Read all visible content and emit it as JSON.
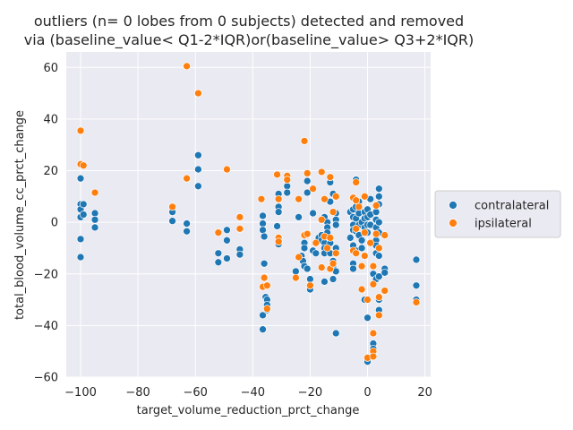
{
  "chart_data": {
    "type": "scatter",
    "title_line1": "outliers (n= 0 lobes from 0 subjects) detected and removed",
    "title_line2": "via (baseline_value< Q1-2*IQR)or(baseline_value> Q3+2*IQR)",
    "xlabel": "target_volume_reduction_prct_change",
    "ylabel": "total_blood_volume_cc_prct_change",
    "xlim": [
      -105,
      22
    ],
    "ylim": [
      -60,
      66
    ],
    "xticks": [
      -100,
      -80,
      -60,
      -40,
      -20,
      0,
      20
    ],
    "yticks": [
      -60,
      -40,
      -20,
      0,
      20,
      40,
      60
    ],
    "xtick_labels": [
      "−100",
      "−80",
      "−60",
      "−40",
      "−20",
      "0",
      "20"
    ],
    "ytick_labels": [
      "−60",
      "−40",
      "−20",
      "0",
      "20",
      "40",
      "60"
    ],
    "grid": true,
    "legend_placement": "center-right outside",
    "series": [
      {
        "name": "contralateral",
        "color": "#1f77b4",
        "points": [
          [
            -100,
            17
          ],
          [
            -100,
            7
          ],
          [
            -100,
            5
          ],
          [
            -100,
            2
          ],
          [
            -100,
            -6.5
          ],
          [
            -100,
            -13.5
          ],
          [
            -99,
            7
          ],
          [
            -99,
            3
          ],
          [
            -95,
            3.5
          ],
          [
            -95,
            1
          ],
          [
            -95,
            -2
          ],
          [
            -68,
            4
          ],
          [
            -68,
            0.5
          ],
          [
            -63,
            -0.5
          ],
          [
            -63,
            -3.5
          ],
          [
            -59,
            26
          ],
          [
            -59,
            20.5
          ],
          [
            -59,
            14
          ],
          [
            -52,
            -12
          ],
          [
            -52,
            -15.5
          ],
          [
            -49,
            -3
          ],
          [
            -49,
            -7
          ],
          [
            -49,
            -14
          ],
          [
            -44.5,
            -10.5
          ],
          [
            -44.5,
            -12.5
          ],
          [
            -36.5,
            2.5
          ],
          [
            -36.5,
            -0.5
          ],
          [
            -36.5,
            -3
          ],
          [
            -36,
            -5.5
          ],
          [
            -36,
            -16
          ],
          [
            -36.5,
            -36
          ],
          [
            -36.5,
            -41.5
          ],
          [
            -35.5,
            -29
          ],
          [
            -35,
            -30
          ],
          [
            -35,
            -32
          ],
          [
            -35,
            -34
          ],
          [
            -31,
            11
          ],
          [
            -31,
            6
          ],
          [
            -31,
            4
          ],
          [
            -31.5,
            -1.5
          ],
          [
            -31,
            -7.5
          ],
          [
            -31,
            -8.5
          ],
          [
            -28,
            14
          ],
          [
            -28,
            11.5
          ],
          [
            -25,
            -19
          ],
          [
            -24,
            2
          ],
          [
            -23,
            -13
          ],
          [
            -22.5,
            -15
          ],
          [
            -22,
            -17
          ],
          [
            -22,
            -8
          ],
          [
            -22,
            -10
          ],
          [
            -21,
            16
          ],
          [
            -21,
            11.5
          ],
          [
            -21,
            -18
          ],
          [
            -20,
            -22
          ],
          [
            -20,
            -26
          ],
          [
            -19,
            3.5
          ],
          [
            -19,
            -11
          ],
          [
            -18,
            -12
          ],
          [
            -17,
            -6
          ],
          [
            -16,
            -5
          ],
          [
            -16,
            -7
          ],
          [
            -15,
            -8
          ],
          [
            -15,
            -10
          ],
          [
            -15,
            -12
          ],
          [
            -15,
            -23
          ],
          [
            -15,
            2
          ],
          [
            -14,
            0
          ],
          [
            -14,
            -2
          ],
          [
            -14,
            -4
          ],
          [
            -13,
            15.5
          ],
          [
            -13,
            8
          ],
          [
            -13,
            -8
          ],
          [
            -13,
            -12
          ],
          [
            -12,
            11
          ],
          [
            -12,
            -15
          ],
          [
            -12,
            -17
          ],
          [
            -12,
            -22
          ],
          [
            -11,
            3.5
          ],
          [
            -11,
            1
          ],
          [
            -11,
            -1
          ],
          [
            -11,
            -10
          ],
          [
            -11,
            -19
          ],
          [
            -11,
            -43
          ],
          [
            -6,
            4
          ],
          [
            -6,
            -6
          ],
          [
            -5,
            5
          ],
          [
            -5,
            2
          ],
          [
            -5,
            -1
          ],
          [
            -5,
            -3
          ],
          [
            -5,
            -9
          ],
          [
            -5,
            -16
          ],
          [
            -5,
            -18
          ],
          [
            -4,
            16.5
          ],
          [
            -4,
            6
          ],
          [
            -4,
            1.5
          ],
          [
            -4,
            -3.5
          ],
          [
            -4,
            -11
          ],
          [
            -3,
            8
          ],
          [
            -3,
            3.5
          ],
          [
            -3,
            -1
          ],
          [
            -3,
            -5
          ],
          [
            -2,
            0
          ],
          [
            -2,
            -7
          ],
          [
            -2,
            -10
          ],
          [
            -1,
            4
          ],
          [
            -1,
            1.5
          ],
          [
            -1,
            -2
          ],
          [
            -1,
            -30
          ],
          [
            0,
            5
          ],
          [
            0,
            2
          ],
          [
            0,
            -1
          ],
          [
            0,
            -4
          ],
          [
            0,
            -37
          ],
          [
            0,
            -54
          ],
          [
            1,
            9
          ],
          [
            1,
            3
          ],
          [
            1,
            -1
          ],
          [
            2,
            -20
          ],
          [
            2,
            -47
          ],
          [
            2,
            -49
          ],
          [
            2,
            -51
          ],
          [
            3,
            4
          ],
          [
            3,
            1
          ],
          [
            3,
            -2
          ],
          [
            3,
            -7
          ],
          [
            3,
            -9
          ],
          [
            3,
            -12
          ],
          [
            3,
            -22
          ],
          [
            4,
            13
          ],
          [
            4,
            10
          ],
          [
            4,
            7
          ],
          [
            4,
            0
          ],
          [
            4,
            -4
          ],
          [
            4,
            -13
          ],
          [
            4,
            -21
          ],
          [
            4,
            -30
          ],
          [
            4,
            -34
          ],
          [
            6,
            -18
          ],
          [
            6,
            -19.5
          ],
          [
            17,
            -14.5
          ],
          [
            17,
            -24.5
          ],
          [
            17,
            -30
          ]
        ]
      },
      {
        "name": "ipsilateral",
        "color": "#ff7f0e",
        "points": [
          [
            -100,
            35.5
          ],
          [
            -100,
            22.5
          ],
          [
            -99,
            22
          ],
          [
            -95,
            11.5
          ],
          [
            -68,
            6
          ],
          [
            -63,
            60.5
          ],
          [
            -63,
            17
          ],
          [
            -59,
            50
          ],
          [
            -52,
            -4
          ],
          [
            -49,
            20.5
          ],
          [
            -44.5,
            2
          ],
          [
            -44.5,
            -2.5
          ],
          [
            -37,
            9
          ],
          [
            -36.5,
            -25
          ],
          [
            -36,
            -21.5
          ],
          [
            -35,
            -24.5
          ],
          [
            -35,
            -33.5
          ],
          [
            -31.5,
            18.5
          ],
          [
            -31,
            9
          ],
          [
            -31,
            -6
          ],
          [
            -31,
            -7.5
          ],
          [
            -28,
            18
          ],
          [
            -28,
            16.5
          ],
          [
            -25,
            -21.5
          ],
          [
            -24,
            9
          ],
          [
            -24,
            -13.5
          ],
          [
            -22,
            31.5
          ],
          [
            -22,
            -5
          ],
          [
            -21,
            19
          ],
          [
            -21,
            -4.5
          ],
          [
            -20,
            -24.5
          ],
          [
            -19,
            13
          ],
          [
            -18,
            -8
          ],
          [
            -16,
            19.5
          ],
          [
            -16,
            1
          ],
          [
            -16,
            -17.5
          ],
          [
            -15,
            9
          ],
          [
            -15,
            -5.5
          ],
          [
            -14,
            -10
          ],
          [
            -13,
            17.5
          ],
          [
            -13,
            -6
          ],
          [
            -13,
            -18
          ],
          [
            -12,
            4
          ],
          [
            -12,
            -16
          ],
          [
            -11,
            10
          ],
          [
            -11,
            -12
          ],
          [
            -5,
            9.5
          ],
          [
            -5,
            -11
          ],
          [
            -4,
            15.5
          ],
          [
            -4,
            8.5
          ],
          [
            -4,
            -2.5
          ],
          [
            -4,
            -12
          ],
          [
            -3,
            6
          ],
          [
            -2,
            -17
          ],
          [
            -2,
            -26
          ],
          [
            -1,
            10
          ],
          [
            -1,
            -4
          ],
          [
            -1,
            -13
          ],
          [
            0,
            -30
          ],
          [
            0,
            -52.5
          ],
          [
            1,
            -8
          ],
          [
            2,
            -17
          ],
          [
            2,
            -24
          ],
          [
            2,
            -43
          ],
          [
            2,
            -50
          ],
          [
            2,
            -52
          ],
          [
            3,
            6.5
          ],
          [
            3,
            -4.5
          ],
          [
            4,
            -10
          ],
          [
            4,
            -29
          ],
          [
            4,
            -36
          ],
          [
            6,
            -5
          ],
          [
            6,
            -26.5
          ],
          [
            17,
            -31
          ]
        ]
      }
    ]
  }
}
